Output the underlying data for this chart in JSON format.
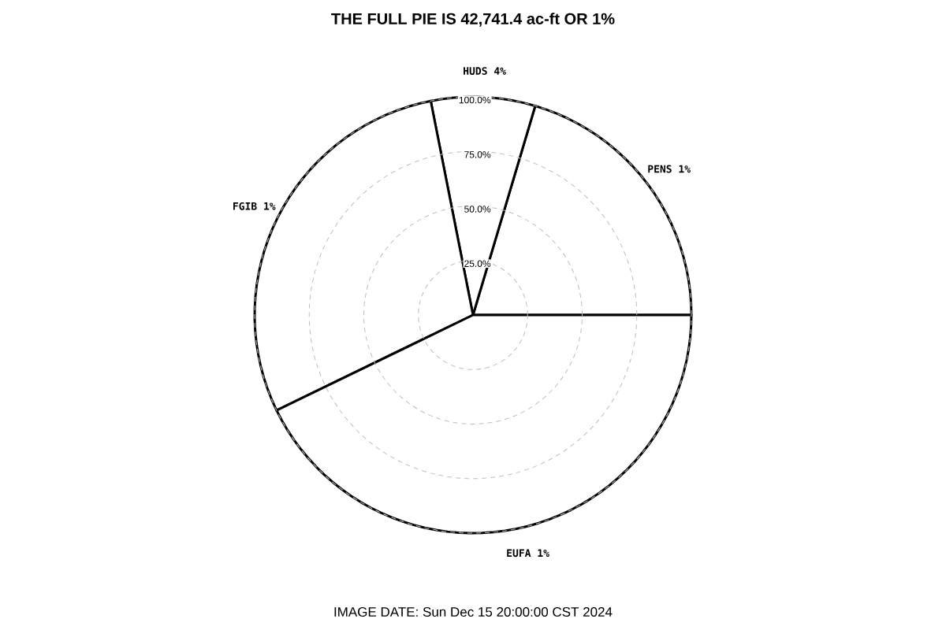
{
  "chart_data": {
    "type": "pie",
    "title": "THE FULL PIE IS 42,741.4 ac-ft OR 1%",
    "categories": [
      "PENS 1%",
      "HUDS 4%",
      "FGIB 1%",
      "EUFA 1%"
    ],
    "values": [
      20.4,
      7.7,
      29.1,
      42.8
    ],
    "grid": true,
    "annotations": [
      "IMAGE DATE: Sun Dec 15 20:00:00 CST 2024",
      "25.0%",
      "50.0%",
      "75.0%",
      "100.0%"
    ]
  }
}
